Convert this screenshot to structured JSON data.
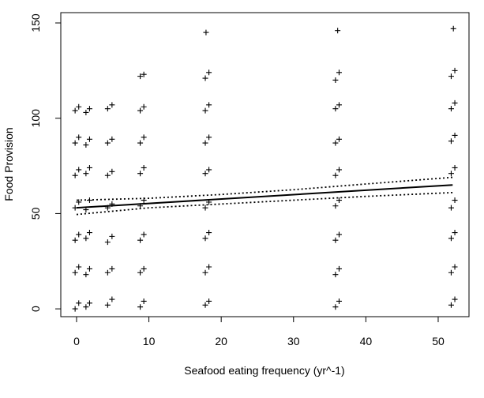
{
  "chart_data": {
    "type": "scatter",
    "x_label": "Seafood eating frequency (yr^-1)",
    "y_label": "Food Provision",
    "xlim": [
      -2.18,
      54.26
    ],
    "ylim": [
      -4.1,
      155.4
    ],
    "xticks": [
      0,
      10,
      20,
      30,
      40,
      50
    ],
    "yticks": [
      0,
      50,
      100,
      150
    ],
    "color": "#000000",
    "x": [
      -0.2,
      0.3,
      -0.2,
      0.3,
      -0.2,
      0.3,
      -0.2,
      0.3,
      -0.2,
      0.3,
      -0.2,
      0.3,
      -0.2,
      0.3,
      1.3,
      1.8,
      1.3,
      1.8,
      1.3,
      1.8,
      1.3,
      1.8,
      1.3,
      1.8,
      1.3,
      1.8,
      1.3,
      1.8,
      4.3,
      4.9,
      4.3,
      4.9,
      4.3,
      4.9,
      4.3,
      4.9,
      4.3,
      4.9,
      4.3,
      4.9,
      4.3,
      4.9,
      8.8,
      9.3,
      8.8,
      9.3,
      8.8,
      9.3,
      8.8,
      9.3,
      8.8,
      9.3,
      8.8,
      9.3,
      8.8,
      9.3,
      8.8,
      9.3,
      17.8,
      18.3,
      17.8,
      18.3,
      17.8,
      18.3,
      17.8,
      18.3,
      17.8,
      18.3,
      17.8,
      18.3,
      17.8,
      18.3,
      17.8,
      18.3,
      17.9,
      35.8,
      36.3,
      35.8,
      36.3,
      35.8,
      36.3,
      35.8,
      36.3,
      35.8,
      36.3,
      35.8,
      36.3,
      35.8,
      36.3,
      35.8,
      36.3,
      36.1,
      51.8,
      52.3,
      51.8,
      52.3,
      51.8,
      52.3,
      51.8,
      52.3,
      51.8,
      52.3,
      51.8,
      52.3,
      51.8,
      52.3,
      51.8,
      52.3,
      52.1
    ],
    "values": [
      0,
      3,
      19,
      22,
      36,
      39,
      53,
      56,
      70,
      73,
      87,
      90,
      104,
      106,
      1,
      3,
      18,
      21,
      37,
      40,
      52,
      57,
      71,
      74,
      86,
      89,
      103,
      105,
      2,
      5,
      19,
      21,
      35,
      38,
      53,
      55,
      70,
      72,
      87,
      89,
      105,
      107,
      1,
      4,
      19,
      21,
      36,
      39,
      54,
      57,
      71,
      74,
      87,
      90,
      104,
      106,
      122,
      123,
      2,
      4,
      19,
      22,
      37,
      40,
      53,
      56,
      71,
      73,
      87,
      90,
      104,
      107,
      121,
      124,
      145,
      1,
      4,
      18,
      21,
      36,
      39,
      54,
      57,
      70,
      73,
      87,
      89,
      105,
      107,
      120,
      124,
      146,
      2,
      5,
      19,
      22,
      37,
      40,
      53,
      57,
      71,
      74,
      88,
      91,
      105,
      108,
      122,
      125,
      147
    ],
    "fit": {
      "x": [
        0,
        52
      ],
      "values": [
        53,
        65
      ]
    },
    "ci_lower": {
      "x": [
        0,
        10,
        20,
        30,
        40,
        52
      ],
      "values": [
        49.5,
        53,
        55,
        57,
        59,
        61
      ]
    },
    "ci_upper": {
      "x": [
        0,
        10,
        20,
        30,
        40,
        52
      ],
      "values": [
        57,
        58,
        60,
        62.5,
        65.5,
        69
      ]
    }
  }
}
